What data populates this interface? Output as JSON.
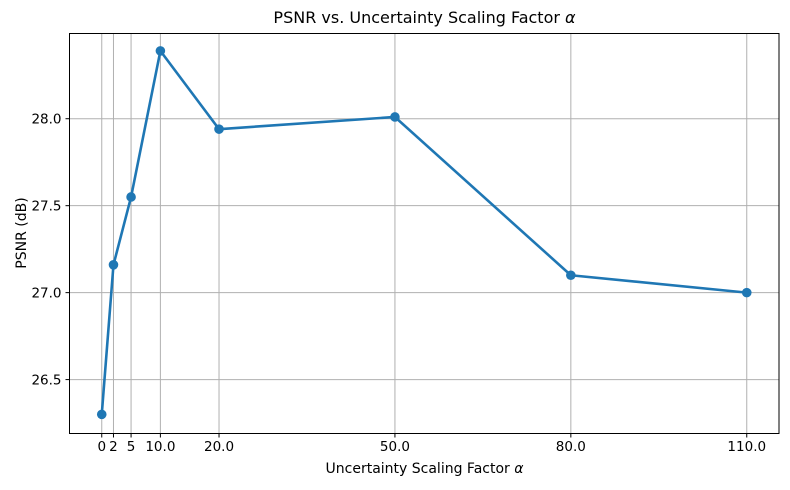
{
  "chart_data": {
    "type": "line",
    "title": "PSNR vs. Uncertainty Scaling Factor α",
    "xlabel": "Uncertainty Scaling Factor α",
    "ylabel": "PSNR (dB)",
    "x": [
      0,
      2,
      5,
      10,
      20,
      50,
      80,
      110
    ],
    "y": [
      26.3,
      27.16,
      27.55,
      28.39,
      27.94,
      28.01,
      27.1,
      27.0
    ],
    "x_ticks": [
      0,
      2,
      5,
      10,
      20,
      50,
      80,
      110
    ],
    "x_tick_labels": [
      "0",
      "2",
      "5",
      "10.0",
      "20.0",
      "50.0",
      "80.0",
      "110.0"
    ],
    "y_ticks": [
      26.5,
      27.0,
      27.5,
      28.0
    ],
    "y_tick_labels": [
      "26.5",
      "27.0",
      "27.5",
      "28.0"
    ],
    "xlim": [
      -5.5,
      115.5
    ],
    "ylim": [
      26.19,
      28.49
    ],
    "grid": true,
    "legend": "none",
    "line_color": "#1f77b4",
    "marker": "circle",
    "grid_color": "#b0b0b0",
    "spine_color": "#000000",
    "tick_label_color": "#000000",
    "background_color": "#ffffff"
  }
}
